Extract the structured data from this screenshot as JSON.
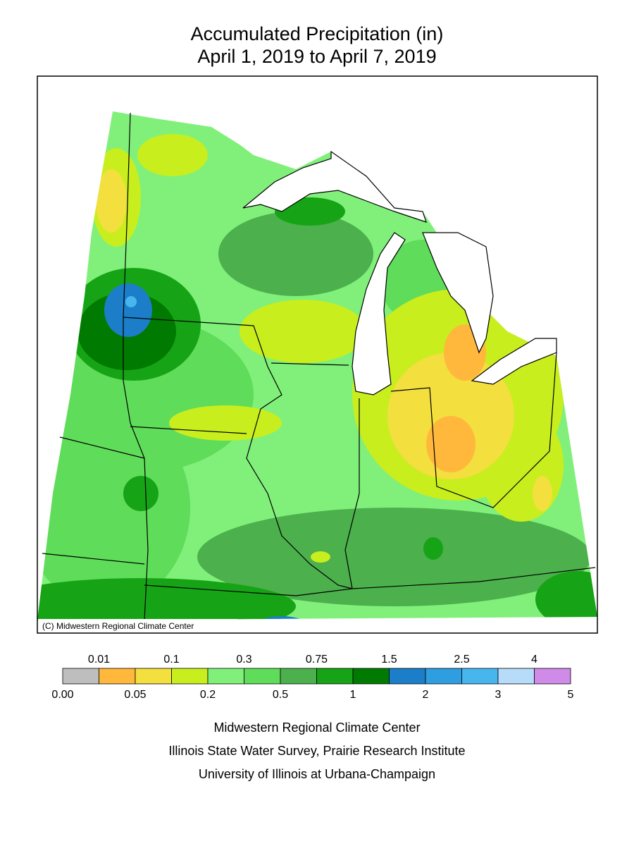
{
  "header": {
    "title": "Accumulated Precipitation (in)",
    "subtitle": "April 1, 2019 to April 7, 2019"
  },
  "map": {
    "copyright": "(C) Midwestern Regional Climate Center"
  },
  "legend": {
    "colors": [
      "#bebebe",
      "#ffb83c",
      "#f3df3e",
      "#c8ee1e",
      "#80f07a",
      "#5fdc5a",
      "#4cb04c",
      "#16a416",
      "#007a00",
      "#1c7ec8",
      "#2e9ee0",
      "#48b6ee",
      "#b6dcfa",
      "#d08ae8"
    ],
    "upper_labels": [
      "0.01",
      "0.1",
      "0.3",
      "0.75",
      "1.5",
      "2.5",
      "4"
    ],
    "lower_labels": [
      "0.00",
      "0.05",
      "0.2",
      "0.5",
      "1",
      "2",
      "3",
      "5"
    ]
  },
  "footer": {
    "lines": [
      "Midwestern Regional Climate Center",
      "Illinois State Water Survey, Prairie Research Institute",
      "University of Illinois at Urbana-Champaign"
    ]
  }
}
